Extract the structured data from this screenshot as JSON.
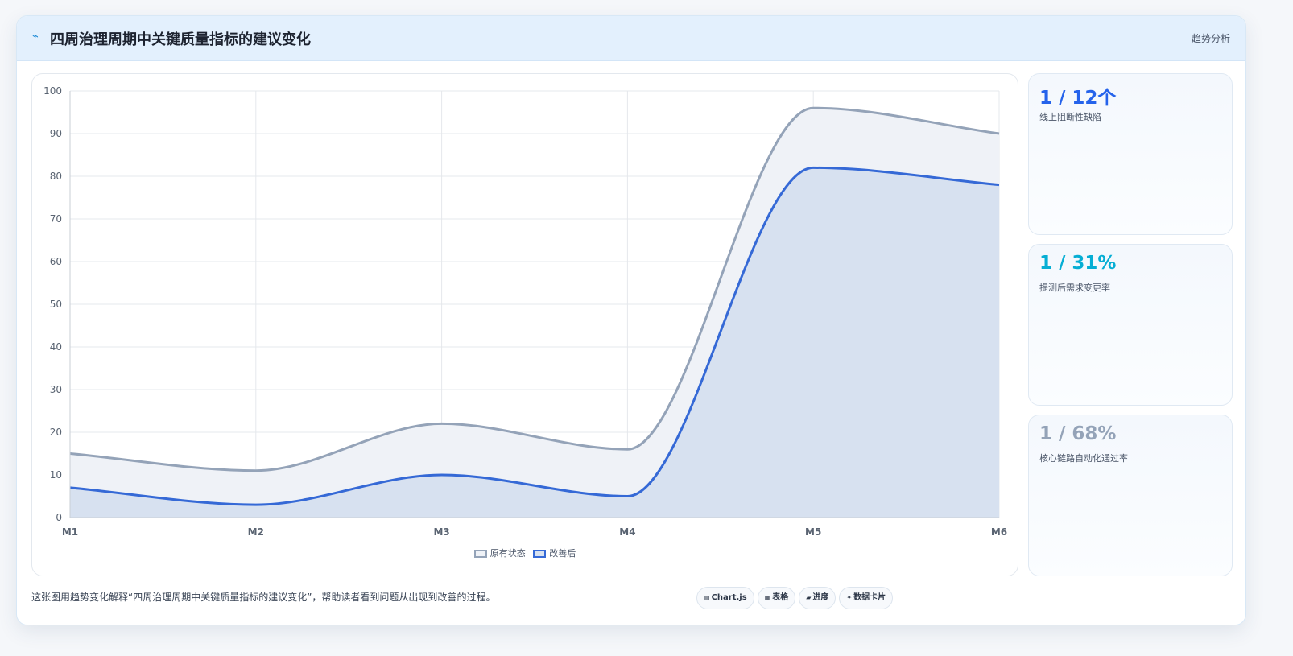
{
  "header": {
    "icon": "⌁",
    "title": "四周治理周期中关键质量指标的建议变化",
    "tag": "趋势分析"
  },
  "chart_data": {
    "type": "area",
    "categories": [
      "M1",
      "M2",
      "M3",
      "M4",
      "M5",
      "M6"
    ],
    "series": [
      {
        "name": "原有状态",
        "values": [
          15,
          11,
          22,
          16,
          96,
          90
        ],
        "color": "#94a3b8",
        "fill": "#eff2f7"
      },
      {
        "name": "改善后",
        "values": [
          7,
          3,
          10,
          5,
          82,
          78
        ],
        "color": "#3569d6",
        "fill": "#d7e1f0"
      }
    ],
    "ylim": [
      0,
      100
    ],
    "yticks": [
      0,
      10,
      20,
      30,
      40,
      50,
      60,
      70,
      80,
      90,
      100
    ],
    "grid": true,
    "legend": "bottom-center"
  },
  "stats": [
    {
      "value": "1 / 12个",
      "label": "线上阻断性缺陷",
      "color": "#2563eb"
    },
    {
      "value": "1 / 31%",
      "label": "提测后需求变更率",
      "color": "#06aed4"
    },
    {
      "value": "1 / 68%",
      "label": "核心链路自动化通过率",
      "color": "#94a3b8"
    }
  ],
  "footer": {
    "note": "这张图用趋势变化解释“四周治理周期中关键质量指标的建议变化”，帮助读者看到问题从出现到改善的过程。",
    "chips": [
      {
        "icon": "▤",
        "label": "Chart.js"
      },
      {
        "icon": "▦",
        "label": "表格"
      },
      {
        "icon": "▰",
        "label": "进度"
      },
      {
        "icon": "✦",
        "label": "数据卡片"
      }
    ]
  }
}
